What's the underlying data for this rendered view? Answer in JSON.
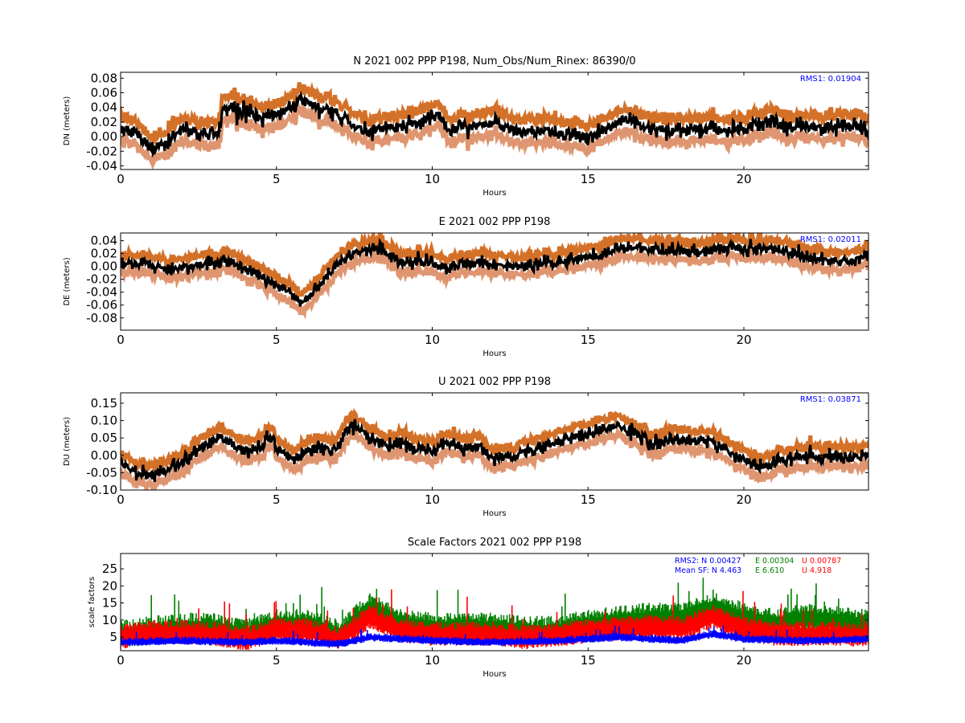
{
  "chart_data": [
    {
      "type": "scatter",
      "title": "N 2021 002 PPP  P198, Num_Obs/Num_Rinex: 86390/0",
      "xlabel": "Hours",
      "ylabel": "DN (meters)",
      "xlim": [
        0,
        24
      ],
      "ylim": [
        -0.045,
        0.088
      ],
      "xticks": [
        "0",
        "5",
        "10",
        "15",
        "20"
      ],
      "yticks": [
        "-0.04",
        "-0.02",
        "0.00",
        "0.02",
        "0.04",
        "0.06",
        "0.08"
      ],
      "annotations": [
        {
          "text": "RMS1:  0.01904",
          "color": "#0000ff"
        }
      ],
      "series": [
        {
          "role": "solution",
          "color": "#000000",
          "x": [
            0,
            0.5,
            1,
            1.5,
            2,
            2.5,
            3,
            3.2,
            3.25,
            3.5,
            4,
            4.5,
            5,
            5.5,
            5.8,
            6,
            6.5,
            7,
            7.5,
            8,
            8.5,
            9,
            9.5,
            10,
            10.2,
            10.5,
            11,
            11.5,
            12,
            12.5,
            13,
            13.5,
            14,
            14.5,
            15,
            15.2,
            15.5,
            16,
            16.5,
            17,
            17.5,
            18,
            18.5,
            19,
            19.5,
            20,
            20.5,
            21,
            21.5,
            22,
            22.5,
            23,
            23.5,
            24
          ],
          "y": [
            0.012,
            0.005,
            -0.018,
            -0.008,
            0.01,
            0.003,
            0.005,
            0.008,
            0.035,
            0.04,
            0.035,
            0.025,
            0.03,
            0.04,
            0.052,
            0.045,
            0.035,
            0.03,
            0.015,
            0.005,
            0.01,
            0.012,
            0.02,
            0.028,
            0.03,
            0.01,
            0.012,
            0.015,
            0.018,
            0.008,
            0.005,
            0.01,
            0.005,
            0.003,
            -0.003,
            0.003,
            0.01,
            0.022,
            0.018,
            0.01,
            0.01,
            0.008,
            0.01,
            0.012,
            0.008,
            0.012,
            0.016,
            0.02,
            0.012,
            0.015,
            0.012,
            0.015,
            0.017,
            0.008
          ]
        },
        {
          "role": "sigma",
          "color": "#d2691e",
          "spread": 0.017
        }
      ]
    },
    {
      "type": "scatter",
      "title": "E 2021 002 PPP  P198",
      "xlabel": "Hours",
      "ylabel": "DE (meters)",
      "xlim": [
        0,
        24
      ],
      "ylim": [
        -0.099,
        0.052
      ],
      "xticks": [
        "0",
        "5",
        "10",
        "15",
        "20"
      ],
      "yticks": [
        "-0.08",
        "-0.06",
        "-0.04",
        "-0.02",
        "0.00",
        "0.02",
        "0.04"
      ],
      "annotations": [
        {
          "text": "RMS1:  0.02011",
          "color": "#0000ff"
        }
      ],
      "series": [
        {
          "role": "solution",
          "color": "#000000",
          "x": [
            0,
            0.5,
            1,
            1.5,
            2,
            2.5,
            3,
            3.5,
            4,
            4.5,
            5,
            5.5,
            5.8,
            6,
            6.5,
            7,
            7.5,
            8,
            8.3,
            8.5,
            9,
            9.5,
            10,
            10.5,
            11,
            11.5,
            12,
            12.5,
            13,
            13.5,
            14,
            14.5,
            15,
            15.5,
            16,
            16.5,
            17,
            17.5,
            18,
            18.5,
            19,
            19.5,
            20,
            20.5,
            21,
            21.5,
            22,
            22.5,
            23,
            23.5,
            24
          ],
          "y": [
            0.005,
            0.002,
            0.003,
            -0.005,
            0.0,
            0.005,
            0.005,
            0.01,
            -0.005,
            -0.015,
            -0.03,
            -0.045,
            -0.058,
            -0.048,
            -0.02,
            0.005,
            0.02,
            0.025,
            0.03,
            0.02,
            0.005,
            0.008,
            0.005,
            -0.005,
            0.005,
            0.008,
            0.005,
            0.0,
            0.003,
            0.005,
            0.008,
            0.01,
            0.015,
            0.02,
            0.028,
            0.03,
            0.025,
            0.025,
            0.025,
            0.022,
            0.025,
            0.03,
            0.028,
            0.028,
            0.025,
            0.02,
            0.015,
            0.012,
            0.008,
            0.01,
            0.02
          ]
        },
        {
          "role": "sigma",
          "color": "#d2691e",
          "spread": 0.015
        }
      ]
    },
    {
      "type": "scatter",
      "title": "U 2021 002 PPP  P198",
      "xlabel": "Hours",
      "ylabel": "DU (meters)",
      "xlim": [
        0,
        24
      ],
      "ylim": [
        -0.1,
        0.18
      ],
      "xticks": [
        "0",
        "5",
        "10",
        "15",
        "20"
      ],
      "yticks": [
        "-0.10",
        "-0.05",
        "0.00",
        "0.05",
        "0.10",
        "0.15"
      ],
      "annotations": [
        {
          "text": "RMS1:  0.03871",
          "color": "#0000ff"
        }
      ],
      "series": [
        {
          "role": "solution",
          "color": "#000000",
          "x": [
            0,
            0.5,
            1,
            1.5,
            2,
            2.5,
            3,
            3.2,
            3.5,
            4,
            4.5,
            4.8,
            5,
            5.5,
            6,
            6.5,
            7,
            7.3,
            7.5,
            8,
            8.5,
            9,
            9.5,
            10,
            10.5,
            11,
            11.5,
            12,
            12.5,
            13,
            13.5,
            14,
            14.5,
            15,
            15.5,
            16,
            16.5,
            17,
            17.5,
            18,
            18.5,
            19,
            19.5,
            20,
            20.5,
            21,
            21.5,
            22,
            22.5,
            23,
            23.5,
            24
          ],
          "y": [
            -0.02,
            -0.05,
            -0.06,
            -0.04,
            -0.02,
            0.02,
            0.04,
            0.05,
            0.035,
            0.01,
            0.025,
            0.06,
            0.02,
            -0.01,
            0.01,
            0.02,
            0.025,
            0.08,
            0.085,
            0.05,
            0.03,
            0.04,
            0.015,
            0.01,
            0.04,
            0.02,
            0.03,
            -0.01,
            -0.005,
            0.01,
            0.02,
            0.04,
            0.055,
            0.06,
            0.08,
            0.09,
            0.06,
            0.03,
            0.04,
            0.05,
            0.04,
            0.04,
            0.01,
            -0.01,
            -0.04,
            -0.02,
            -0.01,
            -0.005,
            0.0,
            0.0,
            -0.005,
            0.0
          ]
        },
        {
          "role": "sigma",
          "color": "#d2691e",
          "spread": 0.03
        }
      ]
    },
    {
      "type": "scatter",
      "title": "Scale Factors 2021 002 PPP  P198",
      "xlabel": "Hours",
      "ylabel": "scale factors",
      "xlim": [
        0,
        24
      ],
      "ylim": [
        1,
        29.5
      ],
      "xticks": [
        "0",
        "5",
        "10",
        "15",
        "20"
      ],
      "yticks": [
        "5",
        "10",
        "15",
        "20",
        "25"
      ],
      "annotations": [
        {
          "text": "RMS2: N  0.00427",
          "color": "#0000ff"
        },
        {
          "text": "E  0.00304",
          "color": "#008000"
        },
        {
          "text": "U  0.00787",
          "color": "#ff0000"
        },
        {
          "text": "Mean SF: N   4.463",
          "color": "#0000ff"
        },
        {
          "text": "E   6.610",
          "color": "#008000"
        },
        {
          "text": "U   4.918",
          "color": "#ff0000"
        }
      ],
      "series": [
        {
          "name": "N",
          "color": "#0000ff",
          "x": [
            0,
            2,
            4,
            5,
            7,
            8,
            10,
            12,
            14,
            16,
            18,
            19,
            20,
            22,
            24
          ],
          "y": [
            3.5,
            4,
            3.5,
            4,
            3,
            5,
            4,
            3.5,
            4,
            5,
            4,
            6,
            4.5,
            4,
            4.5
          ]
        },
        {
          "name": "E",
          "color": "#008000",
          "x": [
            0,
            1,
            2,
            3,
            4,
            5,
            6,
            7,
            8,
            9,
            10,
            11,
            12,
            13,
            14,
            15,
            16,
            17,
            18,
            19,
            20,
            21,
            22,
            23,
            24
          ],
          "y": [
            6,
            7,
            8,
            8,
            6,
            9,
            9,
            6,
            14,
            9,
            8,
            8,
            8,
            7,
            7,
            9,
            10,
            11,
            11,
            14,
            11,
            9,
            11,
            10,
            9
          ]
        },
        {
          "name": "U",
          "color": "#ff0000",
          "x": [
            0,
            1,
            2,
            3,
            4,
            5,
            6,
            7,
            8,
            9,
            10,
            11,
            12,
            13,
            14,
            15,
            16,
            17,
            18,
            19,
            20,
            21,
            22,
            23,
            24
          ],
          "y": [
            5,
            6.5,
            6.5,
            6,
            4.5,
            7,
            7,
            4.5,
            11,
            7,
            6,
            6,
            6,
            5,
            5.5,
            7,
            7.5,
            8,
            7.5,
            11,
            7.5,
            6,
            6,
            6,
            5.5
          ]
        }
      ]
    }
  ]
}
